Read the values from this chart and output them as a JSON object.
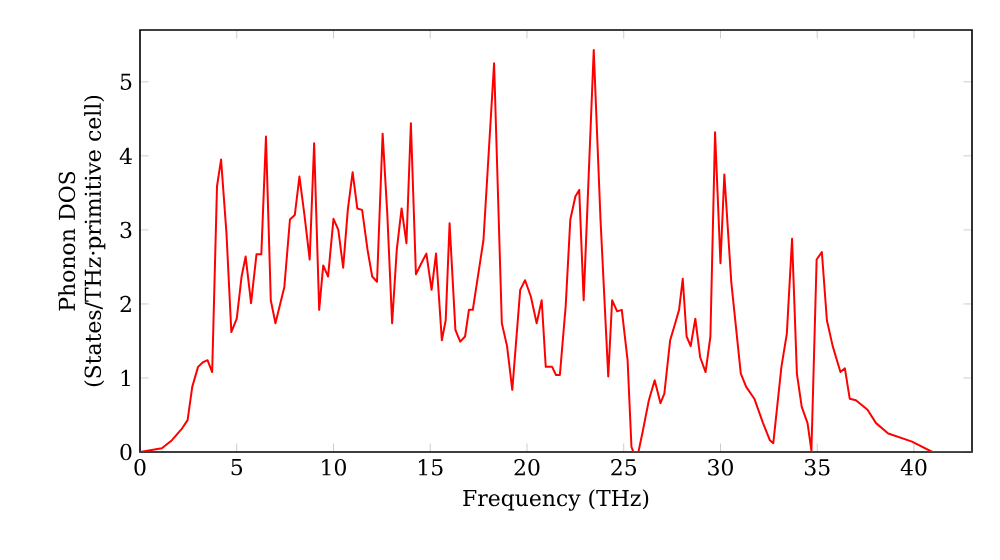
{
  "chart_data": {
    "type": "line",
    "xlabel": "Frequency (THz)",
    "ylabel": "Phonon DOS (States/THz·primitive cell)",
    "xlim": [
      0,
      43
    ],
    "ylim": [
      0,
      5.7
    ],
    "xticks": [
      0,
      5,
      10,
      15,
      20,
      25,
      30,
      35,
      40
    ],
    "yticks": [
      0,
      1,
      2,
      3,
      4,
      5
    ],
    "marker": "none",
    "line_style": "solid",
    "series": [
      {
        "color": "#ff0000",
        "x": [
          0,
          1.13,
          1.65,
          2.18,
          2.46,
          2.7,
          3.0,
          3.24,
          3.49,
          3.73,
          3.98,
          4.19,
          4.47,
          4.72,
          5.0,
          5.25,
          5.46,
          5.74,
          6.02,
          6.27,
          6.51,
          6.76,
          7.0,
          7.46,
          7.75,
          8.0,
          8.24,
          8.49,
          8.77,
          9.0,
          9.26,
          9.47,
          9.72,
          10.0,
          10.25,
          10.5,
          10.74,
          10.99,
          11.23,
          11.48,
          11.76,
          12.0,
          12.25,
          12.54,
          12.78,
          13.03,
          13.27,
          13.52,
          13.77,
          14.0,
          14.26,
          14.54,
          14.8,
          15.07,
          15.3,
          15.6,
          15.8,
          16.0,
          16.3,
          16.55,
          16.8,
          17.0,
          17.2,
          17.75,
          18.3,
          18.7,
          18.97,
          19.24,
          19.65,
          19.9,
          20.2,
          20.5,
          20.76,
          20.97,
          21.3,
          21.5,
          21.7,
          22.0,
          22.24,
          22.5,
          22.7,
          22.93,
          23.45,
          23.8,
          24.2,
          24.4,
          24.66,
          24.9,
          25.2,
          25.4,
          25.5,
          25.76,
          26.0,
          26.3,
          26.6,
          26.9,
          27.1,
          27.4,
          27.66,
          27.86,
          28.05,
          28.25,
          28.46,
          28.7,
          28.95,
          29.23,
          29.48,
          29.72,
          30.0,
          30.2,
          30.56,
          31.05,
          31.33,
          31.75,
          32.2,
          32.55,
          32.73,
          33.15,
          33.43,
          33.7,
          33.95,
          34.2,
          34.5,
          34.7,
          34.97,
          35.24,
          35.5,
          35.8,
          36.2,
          36.43,
          36.68,
          37.0,
          37.6,
          38.04,
          38.67,
          39.9,
          40.95,
          43.0
        ],
        "values": [
          0,
          0.05,
          0.16,
          0.32,
          0.43,
          0.88,
          1.15,
          1.21,
          1.24,
          1.08,
          3.59,
          3.95,
          2.95,
          1.62,
          1.8,
          2.37,
          2.64,
          2.01,
          2.67,
          2.67,
          4.26,
          2.05,
          1.74,
          2.23,
          3.14,
          3.2,
          3.72,
          3.22,
          2.6,
          4.17,
          1.92,
          2.52,
          2.37,
          3.15,
          3.0,
          2.49,
          3.27,
          3.78,
          3.29,
          3.27,
          2.73,
          2.37,
          2.3,
          4.3,
          3.22,
          1.74,
          2.73,
          3.29,
          2.82,
          4.44,
          2.4,
          2.55,
          2.68,
          2.19,
          2.68,
          1.51,
          1.78,
          3.09,
          1.65,
          1.49,
          1.56,
          1.92,
          1.92,
          2.86,
          5.25,
          1.74,
          1.43,
          0.84,
          2.19,
          2.32,
          2.1,
          1.74,
          2.05,
          1.15,
          1.15,
          1.04,
          1.04,
          1.97,
          3.14,
          3.45,
          3.54,
          2.05,
          5.43,
          3.14,
          1.02,
          2.05,
          1.9,
          1.92,
          1.24,
          0.07,
          0,
          0,
          0.3,
          0.7,
          0.97,
          0.66,
          0.79,
          1.51,
          1.74,
          1.92,
          2.34,
          1.56,
          1.43,
          1.8,
          1.28,
          1.08,
          1.56,
          4.32,
          2.55,
          3.75,
          2.29,
          1.06,
          0.88,
          0.72,
          0.39,
          0.16,
          0.12,
          1.15,
          1.6,
          2.88,
          1.06,
          0.61,
          0.39,
          0.02,
          2.6,
          2.7,
          1.78,
          1.43,
          1.08,
          1.13,
          0.72,
          0.7,
          0.57,
          0.39,
          0.25,
          0.14,
          0,
          0
        ]
      }
    ]
  }
}
